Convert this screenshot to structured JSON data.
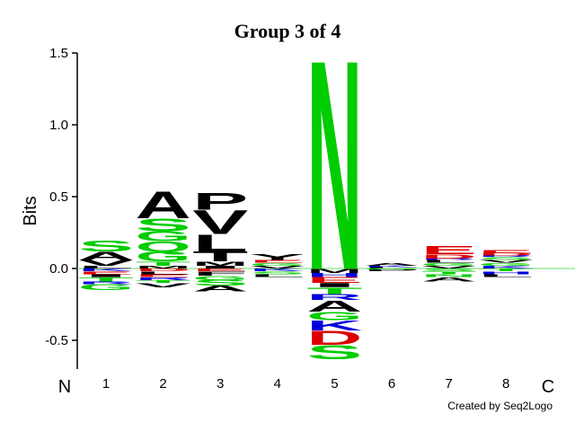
{
  "chart_data": {
    "type": "logo",
    "title": "Group 3 of 4",
    "y_label": "Bits",
    "n_label": "N",
    "c_label": "C",
    "credit": "Created by Seq2Logo",
    "categories": [
      "1",
      "2",
      "3",
      "4",
      "5",
      "6",
      "7",
      "8"
    ],
    "ylim": [
      -0.7,
      1.5
    ],
    "yticks": [
      {
        "value": -0.5,
        "label": "-0.5"
      },
      {
        "value": 0,
        "label": "0.0"
      },
      0.5,
      {
        "value": 1,
        "label": "1.0"
      },
      1.5
    ],
    "stacks": [
      {
        "above": [
          {
            "letter": "L",
            "color": "#000000",
            "bits": 0.02
          },
          {
            "letter": "V",
            "color": "#000000",
            "bits": 0.04
          },
          {
            "letter": "A",
            "color": "#000000",
            "bits": 0.06
          },
          {
            "letter": "S",
            "color": "#00cc00",
            "bits": 0.08
          }
        ],
        "below": [
          {
            "letter": "K",
            "color": "#0000dd",
            "bits": -0.02
          },
          {
            "letter": "E",
            "color": "#dd0000",
            "bits": -0.02
          },
          {
            "letter": "I",
            "color": "#000000",
            "bits": -0.02
          },
          {
            "letter": "T",
            "color": "#00cc00",
            "bits": -0.03
          },
          {
            "letter": "R",
            "color": "#0000dd",
            "bits": -0.02
          },
          {
            "letter": "G",
            "color": "#00cc00",
            "bits": -0.04
          }
        ]
      },
      {
        "above": [
          {
            "letter": "M",
            "color": "#000000",
            "bits": 0.02
          },
          {
            "letter": "T",
            "color": "#00cc00",
            "bits": 0.03
          },
          {
            "letter": "G",
            "color": "#00cc00",
            "bits": 0.07
          },
          {
            "letter": "Q",
            "color": "#00cc00",
            "bits": 0.07
          },
          {
            "letter": "G",
            "color": "#00cc00",
            "bits": 0.07
          },
          {
            "letter": "S",
            "color": "#00cc00",
            "bits": 0.09
          },
          {
            "letter": "A",
            "color": "#000000",
            "bits": 0.19
          }
        ],
        "below": [
          {
            "letter": "D",
            "color": "#dd0000",
            "bits": -0.02
          },
          {
            "letter": "L",
            "color": "#000000",
            "bits": -0.02
          },
          {
            "letter": "E",
            "color": "#dd0000",
            "bits": -0.02
          },
          {
            "letter": "R",
            "color": "#0000dd",
            "bits": -0.02
          },
          {
            "letter": "T",
            "color": "#00cc00",
            "bits": -0.02
          },
          {
            "letter": "V",
            "color": "#000000",
            "bits": -0.03
          }
        ]
      },
      {
        "above": [
          {
            "letter": "I",
            "color": "#000000",
            "bits": 0.02
          },
          {
            "letter": "M",
            "color": "#000000",
            "bits": 0.03
          },
          {
            "letter": "T",
            "color": "#000000",
            "bits": 0.07
          },
          {
            "letter": "L",
            "color": "#000000",
            "bits": 0.12
          },
          {
            "letter": "V",
            "color": "#000000",
            "bits": 0.17
          },
          {
            "letter": "P",
            "color": "#000000",
            "bits": 0.12
          }
        ],
        "below": [
          {
            "letter": "E",
            "color": "#dd0000",
            "bits": -0.02
          },
          {
            "letter": "F",
            "color": "#000000",
            "bits": -0.03
          },
          {
            "letter": "G",
            "color": "#00cc00",
            "bits": -0.03
          },
          {
            "letter": "S",
            "color": "#00cc00",
            "bits": -0.04
          },
          {
            "letter": "A",
            "color": "#000000",
            "bits": -0.04
          }
        ]
      },
      {
        "above": [
          {
            "letter": "V",
            "color": "#000000",
            "bits": 0.02
          },
          {
            "letter": "G",
            "color": "#00cc00",
            "bits": 0.02
          },
          {
            "letter": "E",
            "color": "#dd0000",
            "bits": 0.02
          },
          {
            "letter": "Y",
            "color": "#000000",
            "bits": 0.04
          }
        ],
        "below": [
          {
            "letter": "K",
            "color": "#0000dd",
            "bits": -0.02
          },
          {
            "letter": "S",
            "color": "#00cc00",
            "bits": -0.02
          },
          {
            "letter": "L",
            "color": "#000000",
            "bits": -0.02
          }
        ]
      },
      {
        "above": [
          {
            "letter": "N",
            "color": "#00cc00",
            "bits": 1.5
          }
        ],
        "below": [
          {
            "letter": "M",
            "color": "#000000",
            "bits": -0.03
          },
          {
            "letter": "H",
            "color": "#0000dd",
            "bits": -0.03
          },
          {
            "letter": "E",
            "color": "#dd0000",
            "bits": -0.04
          },
          {
            "letter": "I",
            "color": "#000000",
            "bits": -0.03
          },
          {
            "letter": "T",
            "color": "#00cc00",
            "bits": -0.05
          },
          {
            "letter": "R",
            "color": "#0000dd",
            "bits": -0.04
          },
          {
            "letter": "A",
            "color": "#000000",
            "bits": -0.08
          },
          {
            "letter": "G",
            "color": "#00cc00",
            "bits": -0.06
          },
          {
            "letter": "K",
            "color": "#0000dd",
            "bits": -0.07
          },
          {
            "letter": "D",
            "color": "#dd0000",
            "bits": -0.1
          },
          {
            "letter": "S",
            "color": "#00cc00",
            "bits": -0.1
          }
        ]
      },
      {
        "above": [
          {
            "letter": "L",
            "color": "#000000",
            "bits": 0.01
          },
          {
            "letter": "K",
            "color": "#0000dd",
            "bits": 0.01
          },
          {
            "letter": "A",
            "color": "#000000",
            "bits": 0.02
          }
        ],
        "below": [
          {
            "letter": "G",
            "color": "#00cc00",
            "bits": -0.01
          },
          {
            "letter": "P",
            "color": "#000000",
            "bits": -0.01
          }
        ]
      },
      {
        "above": [
          {
            "letter": "V",
            "color": "#000000",
            "bits": 0.02
          },
          {
            "letter": "G",
            "color": "#00cc00",
            "bits": 0.02
          },
          {
            "letter": "L",
            "color": "#000000",
            "bits": 0.02
          },
          {
            "letter": "R",
            "color": "#0000dd",
            "bits": 0.01
          },
          {
            "letter": "D",
            "color": "#dd0000",
            "bits": 0.03
          },
          {
            "letter": "E",
            "color": "#dd0000",
            "bits": 0.06
          }
        ],
        "below": [
          {
            "letter": "S",
            "color": "#00cc00",
            "bits": -0.02
          },
          {
            "letter": "T",
            "color": "#00cc00",
            "bits": -0.02
          },
          {
            "letter": "N",
            "color": "#00cc00",
            "bits": -0.02
          },
          {
            "letter": "A",
            "color": "#000000",
            "bits": -0.03
          }
        ]
      },
      {
        "above": [
          {
            "letter": "K",
            "color": "#0000dd",
            "bits": 0.02
          },
          {
            "letter": "G",
            "color": "#00cc00",
            "bits": 0.02
          },
          {
            "letter": "V",
            "color": "#000000",
            "bits": 0.02
          },
          {
            "letter": "S",
            "color": "#00cc00",
            "bits": 0.02
          },
          {
            "letter": "R",
            "color": "#0000dd",
            "bits": 0.01
          },
          {
            "letter": "D",
            "color": "#dd0000",
            "bits": 0.02
          },
          {
            "letter": "E",
            "color": "#dd0000",
            "bits": 0.02
          }
        ],
        "below": [
          {
            "letter": "T",
            "color": "#00cc00",
            "bits": -0.02
          },
          {
            "letter": "H",
            "color": "#0000dd",
            "bits": -0.02
          },
          {
            "letter": "L",
            "color": "#000000",
            "bits": -0.02
          }
        ]
      }
    ]
  }
}
